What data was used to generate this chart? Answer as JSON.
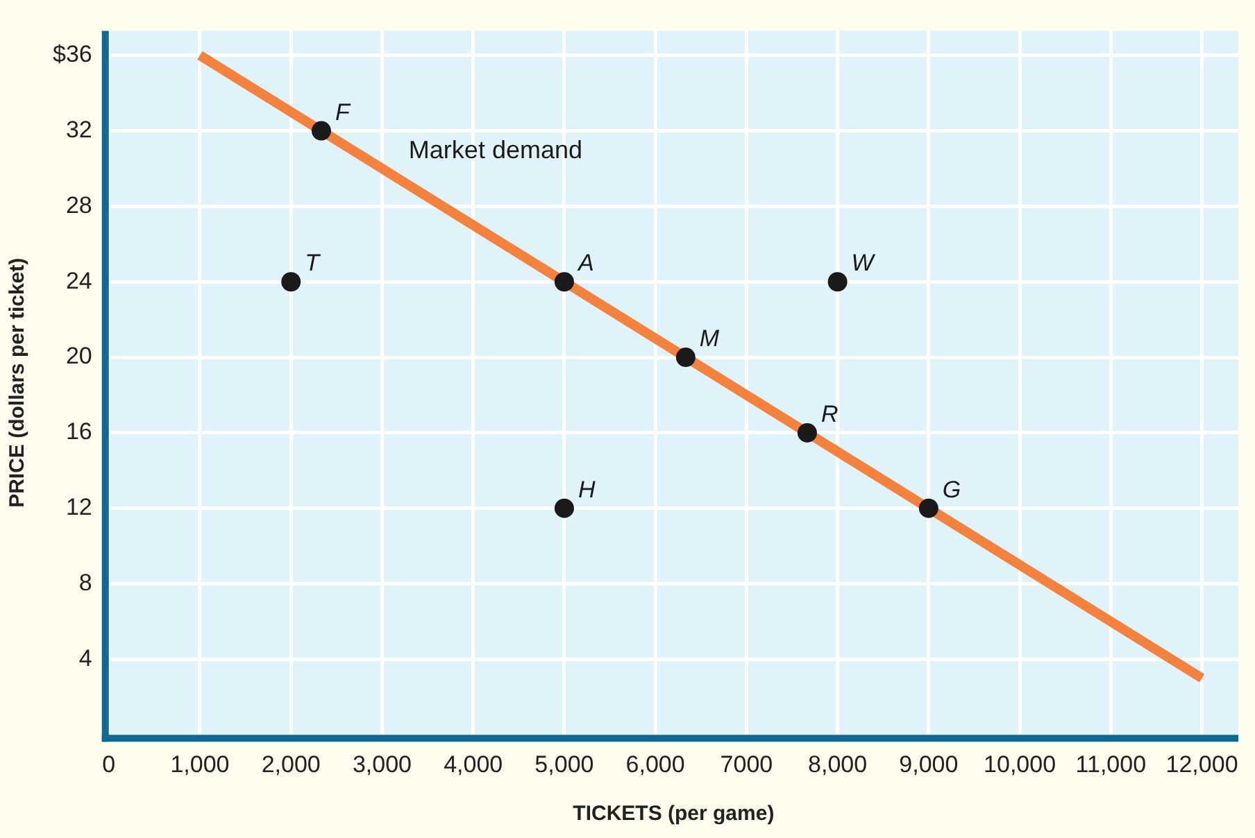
{
  "chart_data": {
    "type": "scatter",
    "xlabel": "TICKETS (per game)",
    "ylabel": "PRICE (dollars per ticket)",
    "xlim": [
      0,
      12400
    ],
    "ylim": [
      0,
      37.3
    ],
    "xticks": [
      0,
      {
        "value": 1000,
        "label": "1,000"
      },
      {
        "value": 2000,
        "label": "2,000"
      },
      {
        "value": 3000,
        "label": "3,000"
      },
      {
        "value": 4000,
        "label": "4,000"
      },
      {
        "value": 5000,
        "label": "5,000"
      },
      {
        "value": 6000,
        "label": "6,000"
      },
      7000,
      {
        "value": 8000,
        "label": "8,000"
      },
      {
        "value": 9000,
        "label": "9,000"
      },
      {
        "value": 10000,
        "label": "10,000"
      },
      {
        "value": 11000,
        "label": "11,000"
      },
      {
        "value": 12000,
        "label": "12,000"
      }
    ],
    "yticks": [
      4,
      8,
      12,
      16,
      20,
      24,
      28,
      32,
      {
        "value": 36,
        "label": "$36"
      }
    ],
    "grid": true,
    "legend": false,
    "marker": "circle",
    "series": [
      {
        "name": "Market demand",
        "type": "line",
        "marker": "none",
        "color": "#f4823f",
        "x": [
          1000,
          12000
        ],
        "values": [
          36,
          3
        ]
      },
      {
        "color": "#1a1a1a",
        "x": [
          2333,
          2000,
          5000,
          6333,
          8000,
          7667,
          5000,
          9000
        ],
        "values": [
          32,
          24,
          24,
          20,
          24,
          16,
          12,
          12
        ]
      }
    ],
    "annotations": [
      {
        "text": "F",
        "x": 2333,
        "y": 32
      },
      {
        "text": "T",
        "x": 2000,
        "y": 24
      },
      {
        "text": "A",
        "x": 5000,
        "y": 24
      },
      {
        "text": "M",
        "x": 6333,
        "y": 20
      },
      {
        "text": "W",
        "x": 8000,
        "y": 24
      },
      {
        "text": "R",
        "x": 7667,
        "y": 16
      },
      {
        "text": "H",
        "x": 5000,
        "y": 12
      },
      {
        "text": "G",
        "x": 9000,
        "y": 12
      }
    ]
  }
}
